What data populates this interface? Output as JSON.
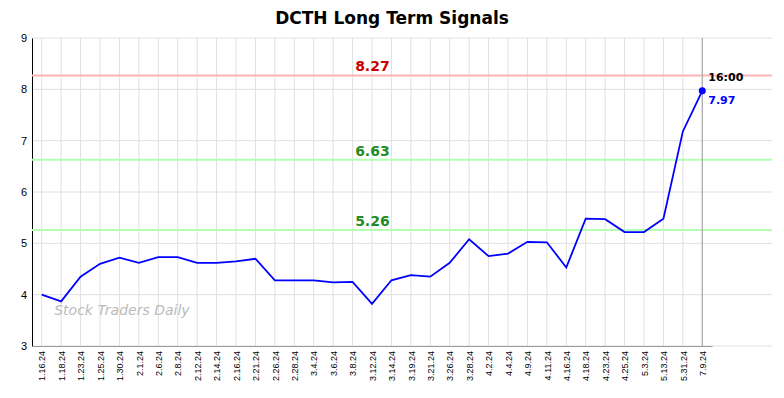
{
  "chart_data": {
    "type": "line",
    "title": "DCTH Long Term Signals",
    "watermark": "Stock Traders Daily",
    "categories": [
      "1.16.24",
      "1.18.24",
      "1.23.24",
      "1.25.24",
      "1.30.24",
      "2.1.24",
      "2.6.24",
      "2.8.24",
      "2.12.24",
      "2.14.24",
      "2.16.24",
      "2.21.24",
      "2.26.24",
      "2.28.24",
      "3.4.24",
      "3.6.24",
      "3.8.24",
      "3.12.24",
      "3.14.24",
      "3.19.24",
      "3.21.24",
      "3.26.24",
      "3.28.24",
      "4.2.24",
      "4.4.24",
      "4.9.24",
      "4.11.24",
      "4.16.24",
      "4.18.24",
      "4.23.24",
      "4.25.24",
      "5.3.24",
      "5.13.24",
      "5.31.24",
      "7.9.24"
    ],
    "series": [
      {
        "color": "blue",
        "values": [
          4.0,
          3.87,
          4.35,
          4.6,
          4.72,
          4.62,
          4.73,
          4.73,
          4.62,
          4.62,
          4.65,
          4.7,
          4.28,
          4.28,
          4.28,
          4.24,
          4.25,
          3.82,
          4.28,
          4.38,
          4.35,
          4.62,
          5.08,
          4.75,
          4.8,
          5.03,
          5.02,
          4.53,
          5.48,
          5.47,
          5.22,
          5.22,
          5.48,
          7.18,
          7.97
        ]
      }
    ],
    "reference_lines": [
      {
        "value": 8.27,
        "color": "#ffb3b3",
        "label_color": "#cc0000"
      },
      {
        "value": 6.63,
        "color": "#b3ffb3",
        "label_color": "#228B22"
      },
      {
        "value": 5.26,
        "color": "#b3ffb3",
        "label_color": "#228B22"
      }
    ],
    "last_time": "16:00",
    "last_price": 7.97,
    "ylim": [
      3,
      9
    ],
    "yticks": [
      3,
      4,
      5,
      6,
      7,
      8,
      9
    ],
    "grid": true
  }
}
